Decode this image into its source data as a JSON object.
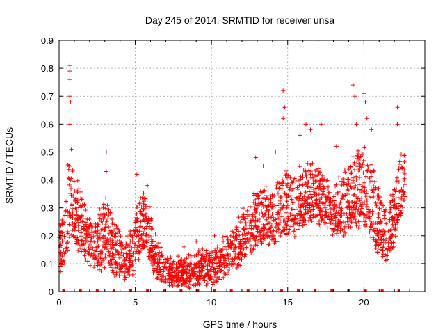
{
  "chart_data": {
    "type": "scatter",
    "title": "Day 245 of 2014, SRMTID for receiver unsa",
    "xlabel": "GPS time / hours",
    "ylabel": "SRMTID / TECUs",
    "xlim": [
      0,
      24
    ],
    "ylim": [
      0,
      0.9
    ],
    "xticks": [
      0,
      5,
      10,
      15,
      20
    ],
    "yticks": [
      0,
      0.1,
      0.2,
      0.3,
      0.4,
      0.5,
      0.6,
      0.7,
      0.8,
      0.9
    ],
    "grid": true,
    "marker": "+",
    "color": "#ff0000",
    "zero_markers_x": [
      0.3,
      1.4,
      2.5,
      3.6,
      4.7,
      5.8,
      6.9,
      8.0,
      9.1,
      10.2,
      11.3,
      12.4,
      13.5,
      14.6,
      15.7,
      16.8,
      17.9,
      19.0,
      20.1,
      21.2,
      22.3
    ],
    "series": [
      {
        "name": "SRMTID",
        "envelope": [
          [
            0.0,
            0.08,
            0.2
          ],
          [
            0.3,
            0.1,
            0.3
          ],
          [
            0.6,
            0.15,
            0.45
          ],
          [
            0.8,
            0.2,
            0.5
          ],
          [
            1.0,
            0.18,
            0.42
          ],
          [
            1.4,
            0.15,
            0.35
          ],
          [
            1.8,
            0.12,
            0.3
          ],
          [
            2.2,
            0.1,
            0.25
          ],
          [
            2.6,
            0.08,
            0.3
          ],
          [
            3.0,
            0.1,
            0.32
          ],
          [
            3.4,
            0.09,
            0.28
          ],
          [
            3.8,
            0.07,
            0.22
          ],
          [
            4.2,
            0.06,
            0.2
          ],
          [
            4.6,
            0.06,
            0.2
          ],
          [
            5.0,
            0.1,
            0.3
          ],
          [
            5.4,
            0.15,
            0.35
          ],
          [
            5.8,
            0.15,
            0.32
          ],
          [
            6.2,
            0.08,
            0.22
          ],
          [
            6.6,
            0.05,
            0.15
          ],
          [
            7.0,
            0.05,
            0.13
          ],
          [
            7.5,
            0.04,
            0.12
          ],
          [
            8.0,
            0.03,
            0.11
          ],
          [
            8.5,
            0.03,
            0.12
          ],
          [
            9.0,
            0.03,
            0.13
          ],
          [
            9.5,
            0.04,
            0.14
          ],
          [
            10.0,
            0.04,
            0.14
          ],
          [
            10.5,
            0.05,
            0.16
          ],
          [
            11.0,
            0.07,
            0.2
          ],
          [
            11.5,
            0.1,
            0.22
          ],
          [
            12.0,
            0.12,
            0.28
          ],
          [
            12.5,
            0.15,
            0.32
          ],
          [
            13.0,
            0.18,
            0.36
          ],
          [
            13.5,
            0.2,
            0.38
          ],
          [
            14.0,
            0.18,
            0.35
          ],
          [
            14.5,
            0.2,
            0.4
          ],
          [
            15.0,
            0.22,
            0.42
          ],
          [
            15.5,
            0.22,
            0.42
          ],
          [
            16.0,
            0.25,
            0.45
          ],
          [
            16.5,
            0.25,
            0.45
          ],
          [
            17.0,
            0.25,
            0.45
          ],
          [
            17.5,
            0.25,
            0.4
          ],
          [
            18.0,
            0.22,
            0.38
          ],
          [
            18.5,
            0.2,
            0.4
          ],
          [
            19.0,
            0.22,
            0.45
          ],
          [
            19.5,
            0.25,
            0.5
          ],
          [
            20.0,
            0.25,
            0.5
          ],
          [
            20.5,
            0.2,
            0.45
          ],
          [
            21.0,
            0.15,
            0.35
          ],
          [
            21.5,
            0.12,
            0.3
          ],
          [
            22.0,
            0.18,
            0.4
          ],
          [
            22.5,
            0.3,
            0.5
          ],
          [
            22.7,
            0.35,
            0.52
          ]
        ],
        "peaks": [
          [
            0.7,
            0.81
          ],
          [
            0.7,
            0.79
          ],
          [
            0.7,
            0.76
          ],
          [
            0.7,
            0.7
          ],
          [
            0.75,
            0.68
          ],
          [
            0.7,
            0.6
          ],
          [
            0.8,
            0.51
          ],
          [
            1.3,
            0.45
          ],
          [
            3.1,
            0.5
          ],
          [
            3.1,
            0.43
          ],
          [
            5.1,
            0.42
          ],
          [
            5.8,
            0.38
          ],
          [
            14.7,
            0.72
          ],
          [
            14.8,
            0.66
          ],
          [
            14.7,
            0.62
          ],
          [
            15.8,
            0.56
          ],
          [
            16.2,
            0.6
          ],
          [
            16.5,
            0.58
          ],
          [
            17.2,
            0.6
          ],
          [
            18.2,
            0.52
          ],
          [
            19.3,
            0.74
          ],
          [
            19.4,
            0.7
          ],
          [
            19.5,
            0.6
          ],
          [
            20.0,
            0.71
          ],
          [
            20.1,
            0.68
          ],
          [
            20.2,
            0.62
          ],
          [
            20.5,
            0.58
          ],
          [
            22.2,
            0.66
          ],
          [
            22.2,
            0.6
          ],
          [
            14.2,
            0.5
          ],
          [
            13.4,
            0.45
          ],
          [
            12.9,
            0.48
          ],
          [
            9.0,
            0.18
          ],
          [
            10.2,
            0.2
          ],
          [
            8.2,
            0.16
          ],
          [
            4.8,
            0.2
          ]
        ]
      }
    ]
  }
}
